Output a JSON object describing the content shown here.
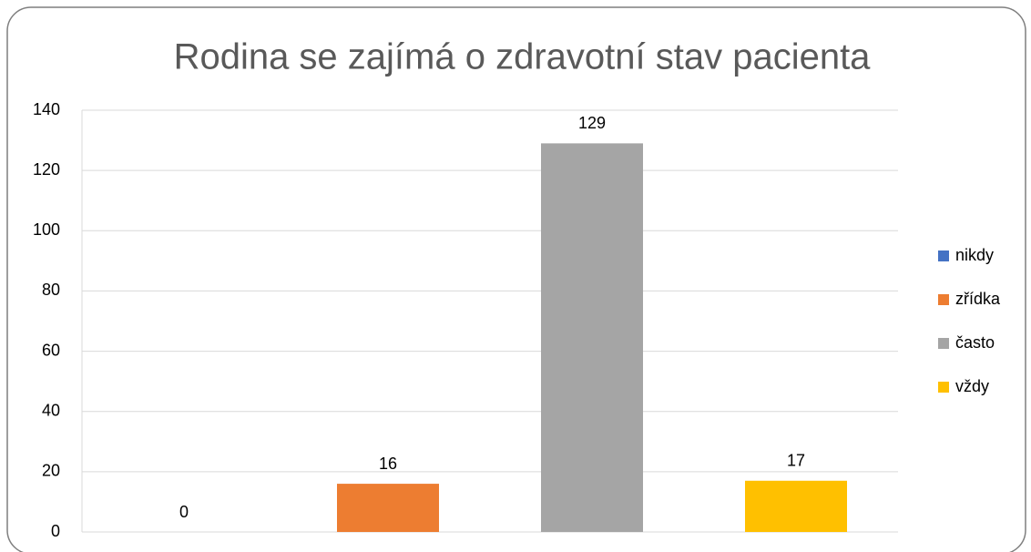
{
  "chart_data": {
    "type": "bar",
    "title": "Rodina se zajímá o zdravotní stav pacienta",
    "categories": [
      null
    ],
    "series": [
      {
        "name": "nikdy",
        "color": "#4472c4",
        "values": [
          0
        ]
      },
      {
        "name": "zřídka",
        "color": "#ed7d31",
        "values": [
          16
        ]
      },
      {
        "name": "často",
        "color": "#a5a5a5",
        "values": [
          129
        ]
      },
      {
        "name": "vždy",
        "color": "#ffc000",
        "values": [
          17
        ]
      }
    ],
    "ylim": [
      0,
      140
    ],
    "yticks": [
      0,
      20,
      40,
      60,
      80,
      100,
      120,
      140
    ],
    "grid": true,
    "legend": "right",
    "data_labels": true
  }
}
